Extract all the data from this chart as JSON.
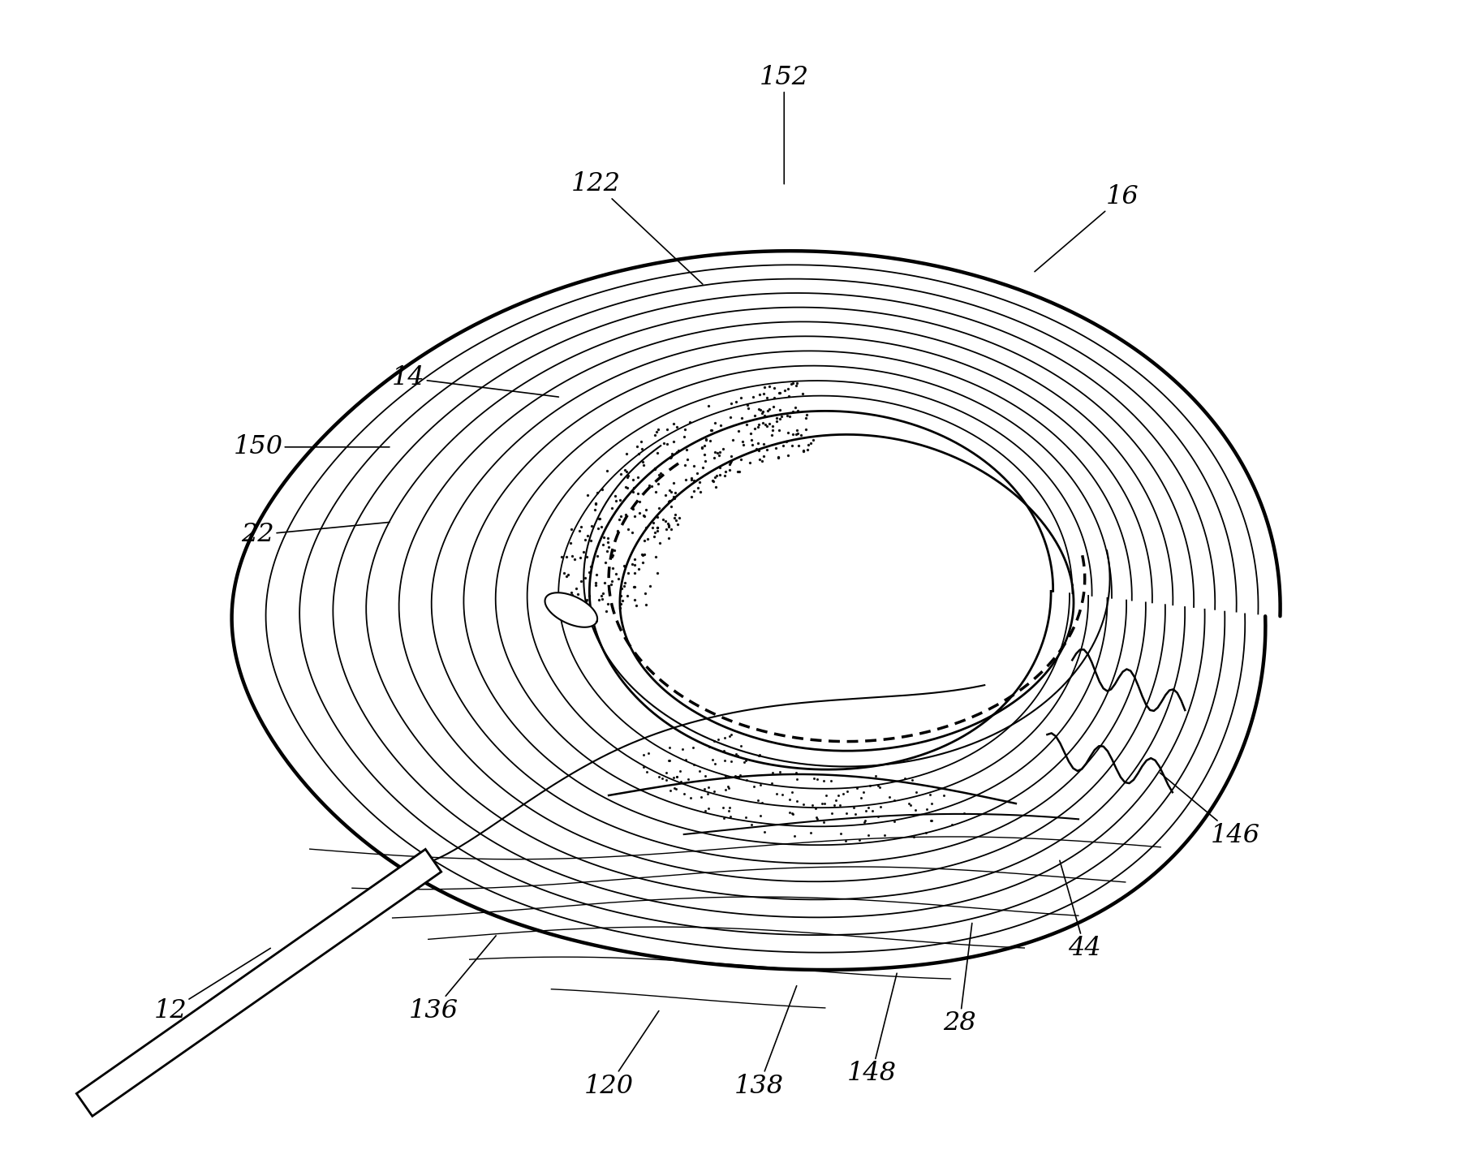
{
  "bg_color": "#ffffff",
  "line_color": "#000000",
  "labels_info": {
    "152": {
      "txt": [
        0.08,
        0.93
      ],
      "arrow": [
        0.08,
        0.76
      ]
    },
    "122": {
      "txt": [
        -0.22,
        0.76
      ],
      "arrow": [
        -0.05,
        0.6
      ]
    },
    "16": {
      "txt": [
        0.62,
        0.74
      ],
      "arrow": [
        0.48,
        0.62
      ]
    },
    "14": {
      "txt": [
        -0.52,
        0.45
      ],
      "arrow": [
        -0.28,
        0.42
      ]
    },
    "150": {
      "txt": [
        -0.76,
        0.34
      ],
      "arrow": [
        -0.55,
        0.34
      ]
    },
    "22": {
      "txt": [
        -0.76,
        0.2
      ],
      "arrow": [
        -0.55,
        0.22
      ]
    },
    "12": {
      "txt": [
        -0.9,
        -0.56
      ],
      "arrow": [
        -0.74,
        -0.46
      ]
    },
    "136": {
      "txt": [
        -0.48,
        -0.56
      ],
      "arrow": [
        -0.38,
        -0.44
      ]
    },
    "120": {
      "txt": [
        -0.2,
        -0.68
      ],
      "arrow": [
        -0.12,
        -0.56
      ]
    },
    "138": {
      "txt": [
        0.04,
        -0.68
      ],
      "arrow": [
        0.1,
        -0.52
      ]
    },
    "148": {
      "txt": [
        0.22,
        -0.66
      ],
      "arrow": [
        0.26,
        -0.5
      ]
    },
    "28": {
      "txt": [
        0.36,
        -0.58
      ],
      "arrow": [
        0.38,
        -0.42
      ]
    },
    "44": {
      "txt": [
        0.56,
        -0.46
      ],
      "arrow": [
        0.52,
        -0.32
      ]
    },
    "146": {
      "txt": [
        0.8,
        -0.28
      ],
      "arrow": [
        0.68,
        -0.18
      ]
    }
  }
}
